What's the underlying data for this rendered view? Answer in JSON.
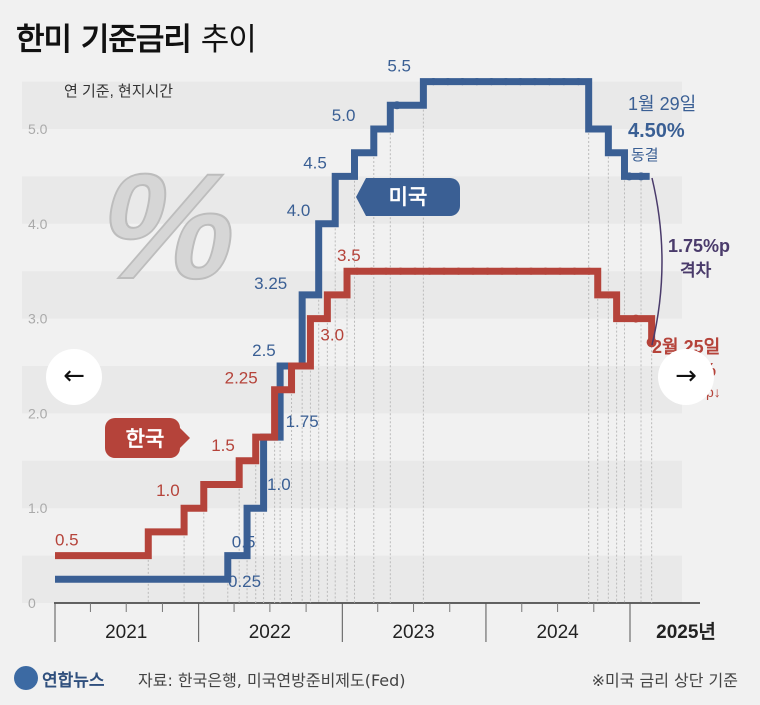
{
  "title": {
    "main": "한미 기준금리",
    "sub": "추이"
  },
  "chart_data": {
    "type": "line",
    "title": "한미 기준금리 추이",
    "subtitle": "연 기준, 현지시간",
    "ylim": [
      0,
      5.5
    ],
    "y_ticks": [
      "0",
      "1.0",
      "2.0",
      "3.0",
      "4.0",
      "5.0"
    ],
    "x_ticks": [
      "2021",
      "2022",
      "2023",
      "2024",
      "2025년"
    ],
    "series": [
      {
        "name": "미국",
        "color": "#3a5f94",
        "points": [
          {
            "x": "2021-01-01",
            "y": 0.25
          },
          {
            "x": "2022-03-16",
            "y": 0.5,
            "label": "0.5"
          },
          {
            "x": "2022-05-04",
            "y": 1.0,
            "label": "1.0"
          },
          {
            "x": "2022-06-15",
            "y": 1.75,
            "label": "1.75"
          },
          {
            "x": "2022-07-27",
            "y": 2.5,
            "label": "2.5"
          },
          {
            "x": "2022-09-21",
            "y": 3.25,
            "label": "3.25"
          },
          {
            "x": "2022-11-02",
            "y": 4.0,
            "label": "4.0"
          },
          {
            "x": "2022-12-14",
            "y": 4.5,
            "label": "4.5"
          },
          {
            "x": "2023-02-01",
            "y": 4.75
          },
          {
            "x": "2023-03-22",
            "y": 5.0,
            "label": "5.0"
          },
          {
            "x": "2023-05-03",
            "y": 5.25
          },
          {
            "x": "2023-07-26",
            "y": 5.5,
            "label": "5.5"
          },
          {
            "x": "2024-09-18",
            "y": 5.0
          },
          {
            "x": "2024-11-07",
            "y": 4.75
          },
          {
            "x": "2024-12-18",
            "y": 4.5
          },
          {
            "x": "2025-01-29",
            "y": 4.5
          }
        ],
        "start_label": "0.25"
      },
      {
        "name": "한국",
        "color": "#b5433a",
        "points": [
          {
            "x": "2021-01-01",
            "y": 0.5,
            "label": "0.5"
          },
          {
            "x": "2021-08-26",
            "y": 0.75
          },
          {
            "x": "2021-11-25",
            "y": 1.0,
            "label": "1.0"
          },
          {
            "x": "2022-01-14",
            "y": 1.25
          },
          {
            "x": "2022-04-14",
            "y": 1.5,
            "label": "1.5"
          },
          {
            "x": "2022-05-26",
            "y": 1.75
          },
          {
            "x": "2022-07-13",
            "y": 2.25,
            "label": "2.25"
          },
          {
            "x": "2022-08-25",
            "y": 2.5
          },
          {
            "x": "2022-10-12",
            "y": 3.0,
            "label": "3.0"
          },
          {
            "x": "2022-11-24",
            "y": 3.25
          },
          {
            "x": "2023-01-13",
            "y": 3.5,
            "label": "3.5"
          },
          {
            "x": "2024-10-11",
            "y": 3.25
          },
          {
            "x": "2024-11-28",
            "y": 3.0
          },
          {
            "x": "2025-02-25",
            "y": 2.75
          }
        ]
      }
    ],
    "annotations": {
      "us_date": "1월 29일",
      "us_rate": "4.50%",
      "us_status": "동결",
      "gap_value": "1.75%p",
      "gap_label": "격차",
      "kr_date": "2월 25일",
      "kr_rate_partial": "%",
      "kr_change_partial": "p↓"
    }
  },
  "footer": {
    "logo": "연합뉴스",
    "source": "자료: 한국은행, 미국연방준비제도(Fed)",
    "note": "※미국 금리 상단 기준"
  },
  "nav": {
    "prev": "←",
    "next": "→"
  }
}
